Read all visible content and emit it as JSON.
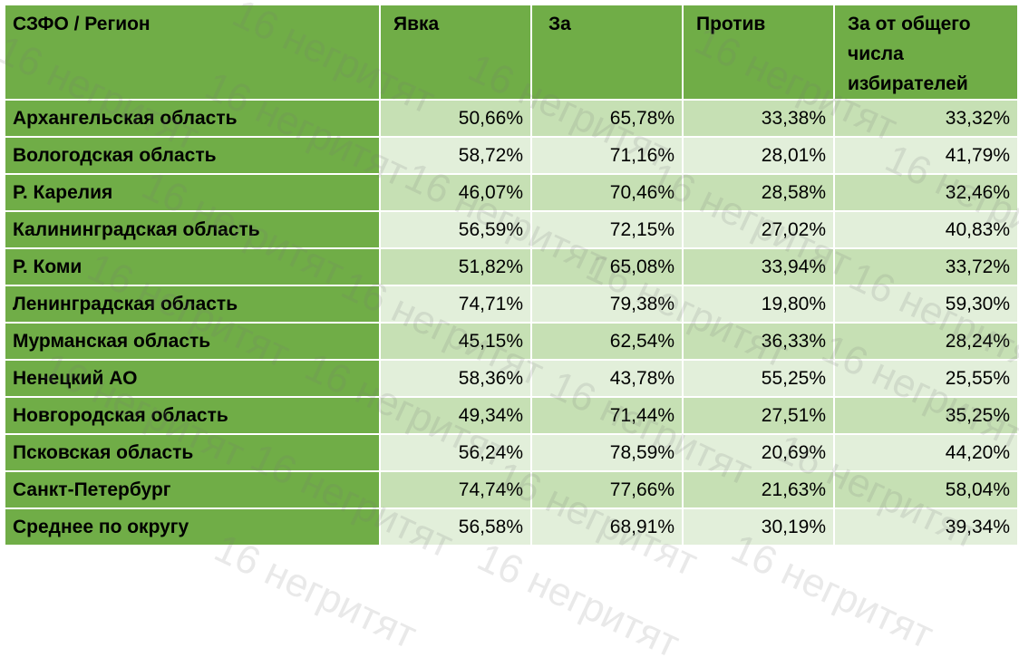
{
  "table": {
    "headers": {
      "region": "СЗФО / Регион",
      "turnout": "Явка",
      "for": "За",
      "against": "Против",
      "for_total": "За от общего числа избирателей"
    },
    "rows": [
      {
        "region": "Архангельская область",
        "turnout": "50,66%",
        "for": "65,78%",
        "against": "33,38%",
        "for_total": "33,32%"
      },
      {
        "region": "Вологодская область",
        "turnout": "58,72%",
        "for": "71,16%",
        "against": "28,01%",
        "for_total": "41,79%"
      },
      {
        "region": "Р. Карелия",
        "turnout": "46,07%",
        "for": "70,46%",
        "against": "28,58%",
        "for_total": "32,46%"
      },
      {
        "region": "Калининградская область",
        "turnout": "56,59%",
        "for": "72,15%",
        "against": "27,02%",
        "for_total": "40,83%"
      },
      {
        "region": "Р. Коми",
        "turnout": "51,82%",
        "for": "65,08%",
        "against": "33,94%",
        "for_total": "33,72%"
      },
      {
        "region": "Ленинградская область",
        "turnout": "74,71%",
        "for": "79,38%",
        "against": "19,80%",
        "for_total": "59,30%"
      },
      {
        "region": "Мурманская область",
        "turnout": "45,15%",
        "for": "62,54%",
        "against": "36,33%",
        "for_total": "28,24%"
      },
      {
        "region": "Ненецкий АО",
        "turnout": "58,36%",
        "for": "43,78%",
        "against": "55,25%",
        "for_total": "25,55%"
      },
      {
        "region": "Новгородская область",
        "turnout": "49,34%",
        "for": "71,44%",
        "against": "27,51%",
        "for_total": "35,25%"
      },
      {
        "region": "Псковская область",
        "turnout": "56,24%",
        "for": "78,59%",
        "against": "20,69%",
        "for_total": "44,20%"
      },
      {
        "region": "Санкт-Петербург",
        "turnout": "74,74%",
        "for": "77,66%",
        "against": "21,63%",
        "for_total": "58,04%"
      },
      {
        "region": "Среднее по округу",
        "turnout": "56,58%",
        "for": "68,91%",
        "against": "30,19%",
        "for_total": "39,34%"
      }
    ]
  },
  "watermark": "16 негритят",
  "colors": {
    "header_bg": "#70ad47",
    "row_dark": "#c6e0b4",
    "row_light": "#e2efda"
  }
}
